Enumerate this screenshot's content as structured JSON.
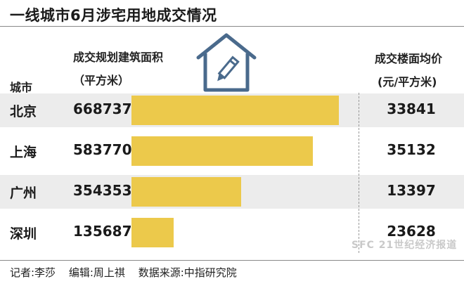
{
  "title": "一线城市6月涉宅用地成交情况",
  "headers": {
    "city": "城市",
    "area_line1": "成交规划建筑面积",
    "area_line2": "（平方米）",
    "price_line1": "成交楼面均价",
    "price_line2": "(元/平方米)"
  },
  "chart_data": {
    "type": "bar",
    "categories": [
      "北京",
      "上海",
      "广州",
      "深圳"
    ],
    "series": [
      {
        "values": [
          668737,
          583770,
          354353,
          135687
        ]
      }
    ],
    "price_values": [
      33841,
      35132,
      13397,
      23628
    ],
    "display": {
      "area": [
        "668737",
        "583770",
        "354353",
        "135687"
      ],
      "price": [
        "33841",
        "35132",
        "13397",
        "23628"
      ]
    },
    "title": "一线城市6月涉宅用地成交情况",
    "orientation": "horizontal",
    "bar_color": "#ecc94b",
    "xlim": [
      0,
      668737
    ]
  },
  "footer": {
    "reporter": "记者:李莎",
    "editor": "编辑:周上祺",
    "source": "数据来源:中指研究院"
  },
  "watermark": "SFC 21世纪经济报道",
  "colors": {
    "bar": "#ecc94b",
    "row_shade": "#ececec",
    "icon": "#4a6a8c"
  }
}
